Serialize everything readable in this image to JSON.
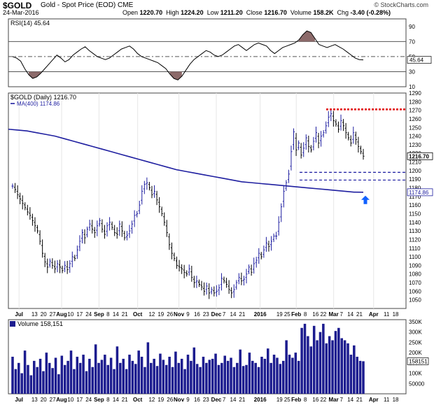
{
  "header": {
    "symbol": "$GOLD",
    "description": "Gold - Spot Price (EOD)  CME",
    "date": "24-Mar-2016",
    "brand": "© StockCharts.com",
    "quote": {
      "open_label": "Open",
      "open": "1220.70",
      "high_label": "High",
      "high": "1224.20",
      "low_label": "Low",
      "low": "1211.20",
      "close_label": "Close",
      "close": "1216.70",
      "volume_label": "Volume",
      "volume": "158.2K",
      "chg_label": "Chg",
      "chg": "-3.40 (-0.28%)"
    }
  },
  "colors": {
    "price_bars": "#000000",
    "ma_line": "#1f1fa0",
    "rsi_fill": "#8c6a6a",
    "volume_bars": "#1c1c8f",
    "resistance": "#e00000",
    "support": "#1a1aa0",
    "arrow": "#1060ff"
  },
  "chart_data": [
    {
      "type": "line",
      "name": "rsi",
      "title": "RSI(14) 45.64",
      "current_value": 45.64,
      "current_label": "45.64",
      "ylim": [
        10,
        100
      ],
      "yticks": [
        90,
        70,
        50,
        30,
        10
      ],
      "reference_lines": [
        70,
        50,
        30
      ],
      "series": [
        {
          "values": [
            50,
            48,
            44,
            34,
            26,
            21,
            23,
            28,
            34,
            40,
            46,
            52,
            48,
            43,
            46,
            52,
            56,
            60,
            63,
            58,
            54,
            50,
            48,
            46,
            48,
            52,
            56,
            60,
            62,
            64,
            60,
            54,
            50,
            48,
            46,
            44,
            42,
            38,
            34,
            27,
            21,
            19,
            24,
            32,
            40,
            46,
            50,
            54,
            58,
            56,
            52,
            50,
            52,
            56,
            60,
            64,
            66,
            62,
            58,
            62,
            66,
            68,
            66,
            64,
            58,
            54,
            58,
            62,
            64,
            66,
            68,
            72,
            79,
            84,
            82,
            74,
            66,
            64,
            62,
            64,
            66,
            63,
            60,
            56,
            52,
            48,
            46,
            45.64
          ]
        }
      ]
    },
    {
      "type": "line",
      "name": "price",
      "title": "$GOLD (Daily) 1216.70",
      "last_price_label": "1216.70",
      "ma_label": "MA(400) 1174.86",
      "ma_value_label": "1174.86",
      "ylim": [
        1040,
        1290
      ],
      "yticks": [
        1290,
        1280,
        1270,
        1260,
        1250,
        1240,
        1230,
        1220,
        1210,
        1200,
        1190,
        1180,
        1170,
        1160,
        1150,
        1140,
        1130,
        1120,
        1110,
        1100,
        1090,
        1080,
        1070,
        1060,
        1050
      ],
      "dates_start": "2015-06-26",
      "dates_end": "2016-03-24",
      "close": [
        1182,
        1178,
        1172,
        1167,
        1162,
        1157,
        1152,
        1148,
        1142,
        1136,
        1130,
        1118,
        1104,
        1094,
        1088,
        1095,
        1090,
        1086,
        1092,
        1088,
        1084,
        1090,
        1085,
        1092,
        1100,
        1098,
        1108,
        1118,
        1128,
        1122,
        1132,
        1138,
        1132,
        1128,
        1136,
        1142,
        1132,
        1126,
        1136,
        1140,
        1134,
        1128,
        1126,
        1138,
        1130,
        1122,
        1125,
        1130,
        1138,
        1148,
        1150,
        1160,
        1176,
        1184,
        1186,
        1180,
        1172,
        1176,
        1166,
        1158,
        1150,
        1140,
        1128,
        1114,
        1104,
        1098,
        1090,
        1088,
        1086,
        1082,
        1080,
        1086,
        1076,
        1070,
        1072,
        1068,
        1065,
        1060,
        1066,
        1058,
        1062,
        1058,
        1060,
        1064,
        1075,
        1072,
        1068,
        1062,
        1058,
        1062,
        1070,
        1076,
        1072,
        1074,
        1080,
        1088,
        1082,
        1092,
        1096,
        1104,
        1100,
        1108,
        1116,
        1112,
        1118,
        1124,
        1124,
        1140,
        1158,
        1176,
        1186,
        1196,
        1222,
        1245,
        1224,
        1232,
        1218,
        1226,
        1238,
        1228,
        1224,
        1234,
        1244,
        1232,
        1240,
        1244,
        1252,
        1262,
        1266,
        1258,
        1254,
        1248,
        1258,
        1252,
        1244,
        1238,
        1232,
        1244,
        1236,
        1228,
        1222,
        1216.7
      ],
      "ma400": [
        1248,
        1247,
        1246,
        1244,
        1242,
        1240,
        1237,
        1234,
        1231,
        1228,
        1225,
        1222,
        1219,
        1216,
        1213,
        1210,
        1207,
        1204,
        1201,
        1199,
        1197,
        1195,
        1193,
        1191,
        1189,
        1187,
        1186,
        1185,
        1184,
        1183,
        1182,
        1181,
        1180,
        1179,
        1178,
        1177,
        1176,
        1175,
        1174.86
      ],
      "resistance": 1271,
      "support": [
        1198,
        1189
      ]
    },
    {
      "type": "bar",
      "name": "volume",
      "title": "Volume 158,151",
      "current_label": "158151",
      "ylim": [
        0,
        360000
      ],
      "yticks": [
        350000,
        300000,
        250000,
        200000,
        150000,
        100000,
        50000
      ],
      "ytick_labels": [
        "350K",
        "300K",
        "250K",
        "200K",
        "150K",
        "100K",
        "50000"
      ],
      "values": [
        180,
        120,
        150,
        100,
        210,
        140,
        90,
        160,
        130,
        170,
        110,
        200,
        150,
        125,
        175,
        95,
        185,
        140,
        160,
        210,
        120,
        180,
        150,
        190,
        110,
        170,
        130,
        240,
        150,
        165,
        190,
        140,
        175,
        120,
        230,
        150,
        170,
        120,
        190,
        160,
        145,
        210,
        180,
        130,
        250,
        150,
        170,
        135,
        195,
        165,
        140,
        180,
        130,
        205,
        150,
        170,
        120,
        190,
        160,
        225,
        145,
        130,
        180,
        150,
        165,
        170,
        195,
        140,
        150,
        185,
        160,
        175,
        130,
        150,
        215,
        135,
        140,
        200,
        160,
        150,
        130,
        180,
        170,
        220,
        150,
        190,
        175,
        145,
        160,
        260,
        190,
        175,
        200,
        160,
        320,
        340,
        280,
        230,
        330,
        260,
        300,
        340,
        245,
        280,
        260,
        305,
        320,
        270,
        260,
        245,
        190,
        235,
        180,
        160,
        158.151
      ],
      "x_tick_labels": [
        "Jul",
        "13",
        "20",
        "27",
        "Aug",
        "10",
        "17",
        "24",
        "Sep",
        "8",
        "14",
        "21",
        "Oct",
        "12",
        "19",
        "26",
        "Nov",
        "9",
        "16",
        "23",
        "Dec",
        "7",
        "14",
        "21",
        "2016",
        "19",
        "25",
        "Feb",
        "8",
        "16",
        "22",
        "Mar",
        "7",
        "14",
        "21",
        "Apr",
        "11",
        "18"
      ]
    }
  ]
}
